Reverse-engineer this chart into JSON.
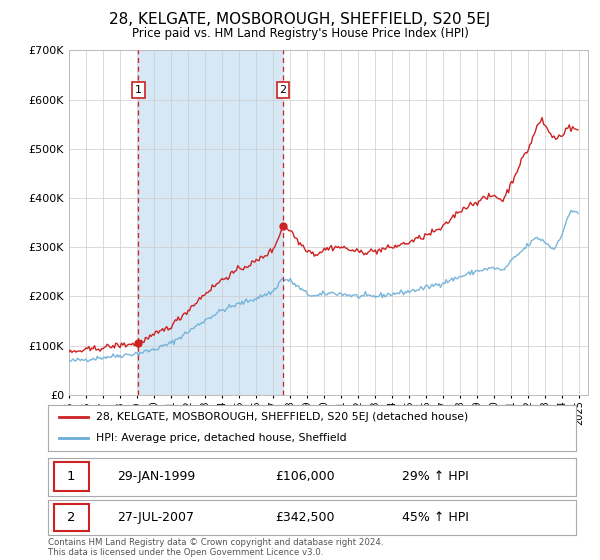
{
  "title": "28, KELGATE, MOSBOROUGH, SHEFFIELD, S20 5EJ",
  "subtitle": "Price paid vs. HM Land Registry's House Price Index (HPI)",
  "legend_line1": "28, KELGATE, MOSBOROUGH, SHEFFIELD, S20 5EJ (detached house)",
  "legend_line2": "HPI: Average price, detached house, Sheffield",
  "transaction1_date": "29-JAN-1999",
  "transaction1_price": "£106,000",
  "transaction1_hpi": "29% ↑ HPI",
  "transaction2_date": "27-JUL-2007",
  "transaction2_price": "£342,500",
  "transaction2_hpi": "45% ↑ HPI",
  "footer": "Contains HM Land Registry data © Crown copyright and database right 2024.\nThis data is licensed under the Open Government Licence v3.0.",
  "hpi_color": "#6baed6",
  "property_color": "#cc2222",
  "vline_color": "#cc2222",
  "shade_color": "#d6e8f5",
  "background_color": "#f0f0f0",
  "plot_bg": "#ffffff",
  "ylim": [
    0,
    700000
  ],
  "yticks": [
    0,
    100000,
    200000,
    300000,
    400000,
    500000,
    600000,
    700000
  ],
  "transaction1_x": 1999.08,
  "transaction1_y": 106000,
  "transaction2_x": 2007.57,
  "transaction2_y": 342500,
  "xmin": 1995.0,
  "xmax": 2025.5
}
